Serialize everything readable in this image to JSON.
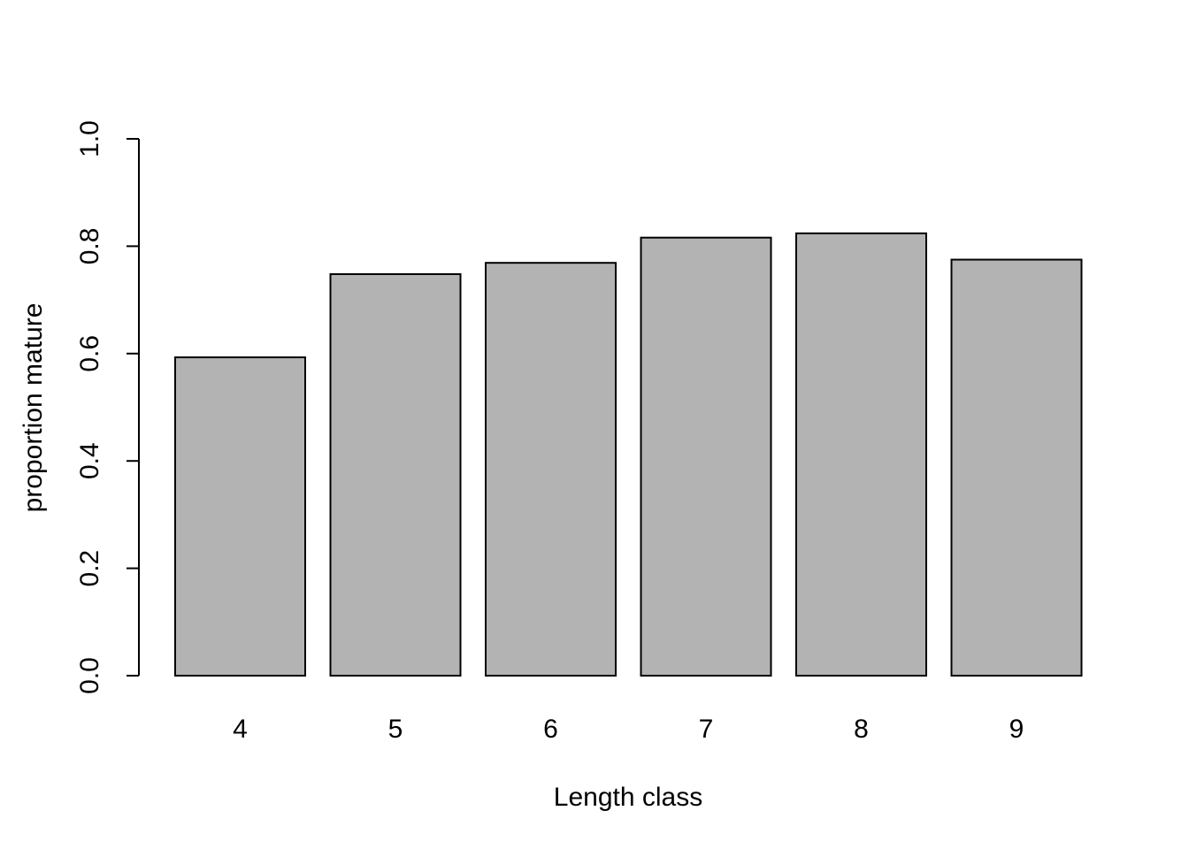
{
  "chart_data": {
    "type": "bar",
    "categories": [
      "4",
      "5",
      "6",
      "7",
      "8",
      "9"
    ],
    "values": [
      0.593,
      0.748,
      0.769,
      0.816,
      0.824,
      0.775
    ],
    "xlabel": "Length class",
    "ylabel": "proportion mature",
    "ylim": [
      0,
      1
    ],
    "yticks": [
      "0.0",
      "0.2",
      "0.4",
      "0.6",
      "0.8",
      "1.0"
    ],
    "grid": false,
    "bar_color": "#b3b3b3",
    "bar_border_color": "#000000"
  }
}
